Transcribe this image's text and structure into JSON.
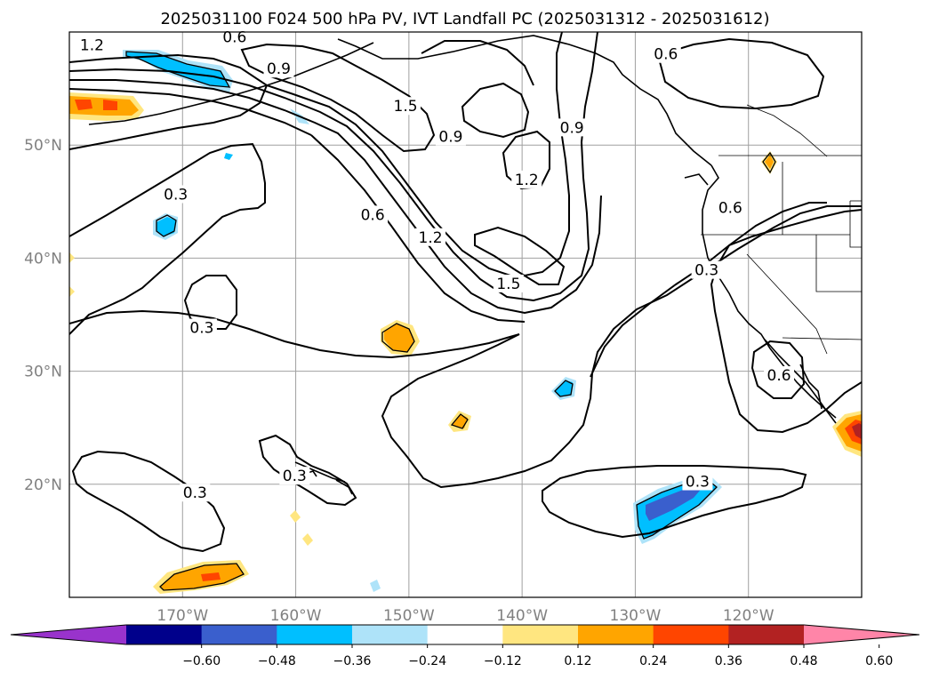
{
  "chart_data": {
    "type": "contour map",
    "title": "2025031100 F024 500 hPa PV, IVT Landfall PC (2025031312 - 2025031612)",
    "lat_range": [
      10,
      60
    ],
    "lon_range": [
      -180,
      -110
    ],
    "grid": true,
    "lat_ticks": [
      {
        "value": 50,
        "label": "50°N"
      },
      {
        "value": 40,
        "label": "40°N"
      },
      {
        "value": 30,
        "label": "30°N"
      },
      {
        "value": 20,
        "label": "20°N"
      }
    ],
    "lon_ticks": [
      {
        "value": -170,
        "label": "170°W"
      },
      {
        "value": -160,
        "label": "160°W"
      },
      {
        "value": -150,
        "label": "150°W"
      },
      {
        "value": -140,
        "label": "140°W"
      },
      {
        "value": -130,
        "label": "130°W"
      },
      {
        "value": -120,
        "label": "120°W"
      }
    ],
    "pv_contour_levels": [
      0.3,
      0.6,
      0.9,
      1.2,
      1.5
    ],
    "contour_labels": [
      {
        "text": "1.2",
        "lon": -178,
        "lat": 58.7
      },
      {
        "text": "0.6",
        "lon": -165.4,
        "lat": 59.4
      },
      {
        "text": "0.9",
        "lon": -161.5,
        "lat": 56.6
      },
      {
        "text": "1.5",
        "lon": -150.3,
        "lat": 53.3
      },
      {
        "text": "0.9",
        "lon": -146.3,
        "lat": 50.6
      },
      {
        "text": "1.2",
        "lon": -139.6,
        "lat": 46.8
      },
      {
        "text": "0.9",
        "lon": -135.6,
        "lat": 51.4
      },
      {
        "text": "0.6",
        "lon": -153.2,
        "lat": 43.7
      },
      {
        "text": "1.2",
        "lon": -148.1,
        "lat": 41.7
      },
      {
        "text": "1.5",
        "lon": -141.2,
        "lat": 37.6
      },
      {
        "text": "0.6",
        "lon": -127.3,
        "lat": 57.9
      },
      {
        "text": "0.6",
        "lon": -121.6,
        "lat": 44.3
      },
      {
        "text": "0.3",
        "lon": -123.7,
        "lat": 38.8
      },
      {
        "text": "0.6",
        "lon": -117.3,
        "lat": 29.5
      },
      {
        "text": "0.3",
        "lon": -168.3,
        "lat": 33.7
      },
      {
        "text": "0.3",
        "lon": -170.6,
        "lat": 45.5
      },
      {
        "text": "0.3",
        "lon": -168.9,
        "lat": 19.1
      },
      {
        "text": "0.3",
        "lon": -160.1,
        "lat": 20.6
      },
      {
        "text": "0.3",
        "lon": -124.5,
        "lat": 20.1
      }
    ],
    "colorbar": {
      "extend": "both",
      "tick_labels": [
        "−0.60",
        "−0.48",
        "−0.36",
        "−0.24",
        "−0.12",
        "0.12",
        "0.24",
        "0.36",
        "0.48",
        "0.60"
      ],
      "colors": [
        "#9933cc",
        "#00008b",
        "#3a5fcd",
        "#00bfff",
        "#aee3f9",
        "#ffffff",
        "#ffe680",
        "#ffa500",
        "#ff4500",
        "#b22222",
        "#ff85a8"
      ]
    }
  }
}
